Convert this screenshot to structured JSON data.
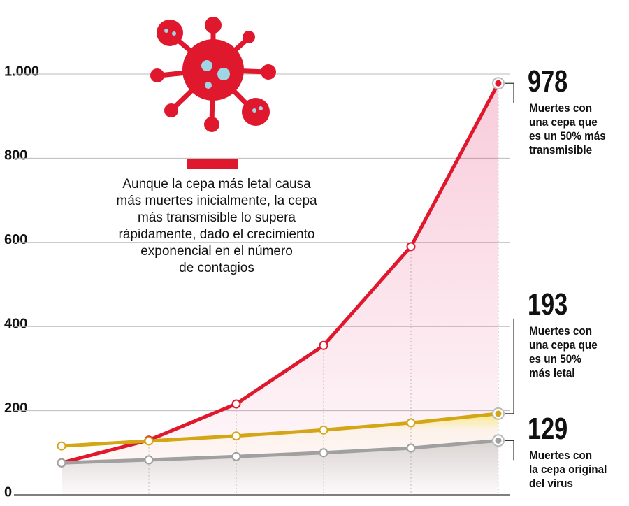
{
  "chart_data": {
    "type": "line",
    "annotation": "Aunque la cepa más letal causa\nmás muertes inicialmente, la cepa\nmás transmisible lo supera\nrápidamente, dado el crecimiento\nexponencial en el número\nde contagios",
    "categories": [
      null,
      null,
      null,
      null,
      null,
      null
    ],
    "series": [
      {
        "name": "Muertes con\nuna cepa que\nes un 50% más\ntransmisible",
        "color": "#e0182d",
        "values": [
          76,
          130,
          216,
          355,
          590,
          978
        ]
      },
      {
        "name": "Muertes con\nuna cepa que\nes un 50%\nmás letal",
        "color": "#d4a514",
        "values": [
          116,
          128,
          140,
          154,
          171,
          193
        ]
      },
      {
        "name": "Muertes con\nla cepa original\ndel virus",
        "color": "#a0a0a0",
        "values": [
          76,
          83,
          91,
          100,
          111,
          129
        ]
      }
    ],
    "ylim": [
      0,
      1000
    ],
    "yticks": [
      0,
      200,
      400,
      600,
      800,
      {
        "value": 1000,
        "label": "1.000"
      }
    ],
    "grid": true
  }
}
